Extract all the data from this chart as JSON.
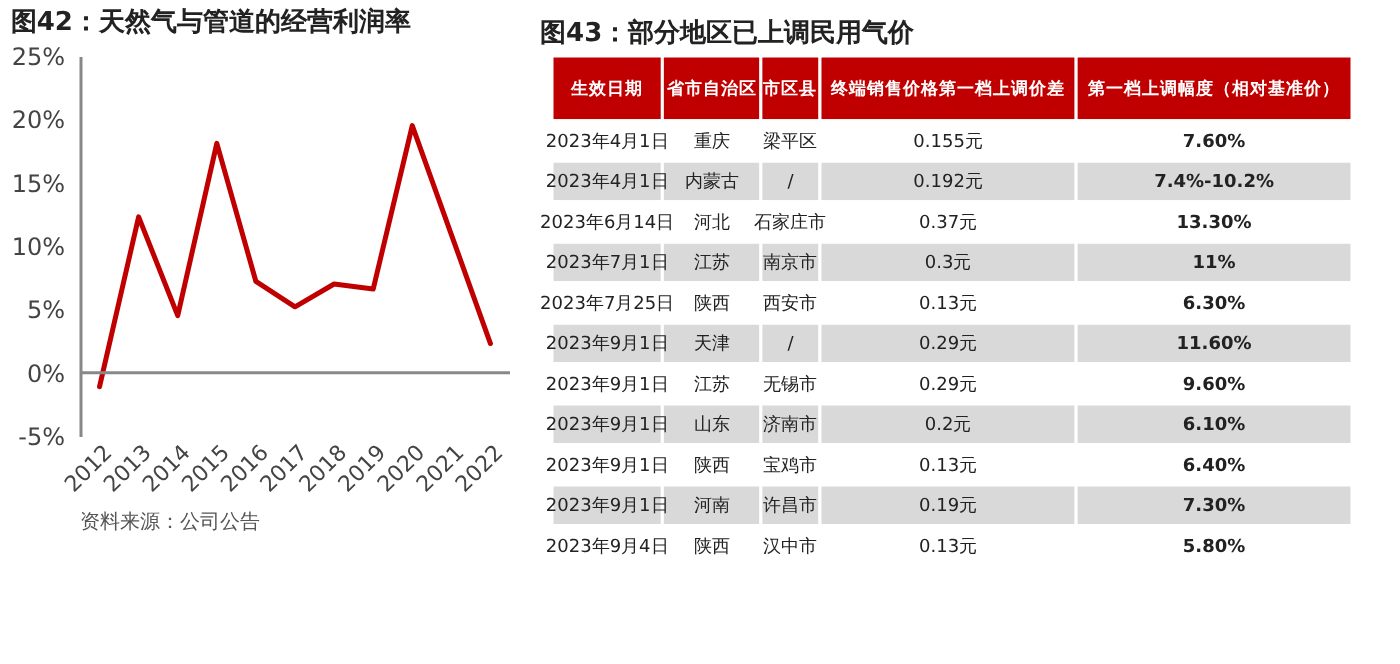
{
  "chart_data": [
    {
      "type": "line",
      "title": "图42：天然气与管道的经营利润率",
      "categories": [
        "2012",
        "2013",
        "2014",
        "2015",
        "2016",
        "2017",
        "2018",
        "2019",
        "2020",
        "2021",
        "2022"
      ],
      "series": [
        {
          "color": "#c00000",
          "values": [
            -1.1,
            12.3,
            4.5,
            18.1,
            7.2,
            5.2,
            7.0,
            6.6,
            19.5,
            10.9,
            2.3
          ]
        }
      ],
      "ylim": [
        -5,
        25
      ],
      "yticks": [
        {
          "value": -5,
          "label": "-5%"
        },
        {
          "value": 0,
          "label": "0%"
        },
        {
          "value": 5,
          "label": "5%"
        },
        {
          "value": 10,
          "label": "10%"
        },
        {
          "value": 15,
          "label": "15%"
        },
        {
          "value": 20,
          "label": "20%"
        },
        {
          "value": 25,
          "label": "25%"
        }
      ],
      "ref_lines": [
        {
          "axis": "y",
          "value": 0,
          "color": "#888888"
        }
      ],
      "grid": false,
      "legend": false,
      "marker": "none",
      "line_style": "solid",
      "annotations": [
        "资料来源：公司公告"
      ]
    },
    {
      "type": "other",
      "title": "图43：部分地区已上调民用气价",
      "categories": [
        "生效日期",
        "省市自治区",
        "市区县",
        "终端销售价格第一档上调价差",
        "第一档上调幅度（相对基准价）"
      ],
      "cell_labels": [
        [
          "2023年4月1日",
          "重庆",
          "梁平区",
          "0.155元",
          "7.60%"
        ],
        [
          "2023年4月1日",
          "内蒙古",
          "/",
          "0.192元",
          "7.4%-10.2%"
        ],
        [
          "2023年6月14日",
          "河北",
          "石家庄市",
          "0.37元",
          "13.30%"
        ],
        [
          "2023年7月1日",
          "江苏",
          "南京市",
          "0.3元",
          "11%"
        ],
        [
          "2023年7月25日",
          "陕西",
          "西安市",
          "0.13元",
          "6.30%"
        ],
        [
          "2023年9月1日",
          "天津",
          "/",
          "0.29元",
          "11.60%"
        ],
        [
          "2023年9月1日",
          "江苏",
          "无锡市",
          "0.29元",
          "9.60%"
        ],
        [
          "2023年9月1日",
          "山东",
          "济南市",
          "0.2元",
          "6.10%"
        ],
        [
          "2023年9月1日",
          "陕西",
          "宝鸡市",
          "0.13元",
          "6.40%"
        ],
        [
          "2023年9月1日",
          "河南",
          "许昌市",
          "0.19元",
          "7.30%"
        ],
        [
          "2023年9月4日",
          "陕西",
          "汉中市",
          "0.13元",
          "5.80%"
        ]
      ]
    }
  ]
}
